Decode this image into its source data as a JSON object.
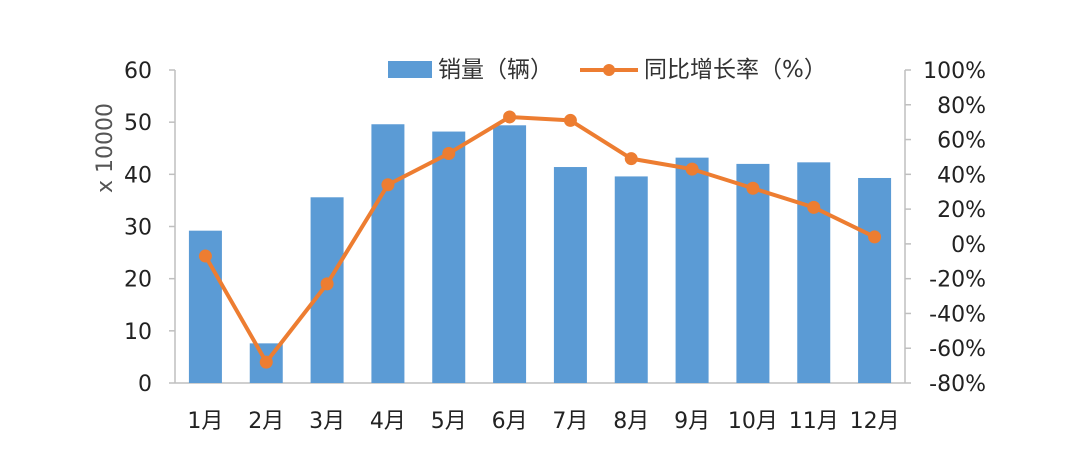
{
  "chart_data": {
    "type": "bar",
    "categories": [
      "1月",
      "2月",
      "3月",
      "4月",
      "5月",
      "6月",
      "7月",
      "8月",
      "9月",
      "10月",
      "11月",
      "12月"
    ],
    "series": [
      {
        "name": "销量（辆）",
        "type": "bar",
        "axis": "left",
        "color": "#5B9BD5",
        "values": [
          29.2,
          7.6,
          35.6,
          49.6,
          48.2,
          49.4,
          41.4,
          39.6,
          43.2,
          42.0,
          42.3,
          39.3
        ]
      },
      {
        "name": "同比增长率（%）",
        "type": "line",
        "axis": "right",
        "color": "#ED7D31",
        "values": [
          -7,
          -68,
          -23,
          34,
          52,
          73,
          71,
          49,
          43,
          32,
          21,
          4
        ]
      }
    ],
    "ylabel": "x 10000",
    "ylim": [
      0,
      60
    ],
    "yticks": [
      "0",
      "10",
      "20",
      "30",
      "40",
      "50",
      "60"
    ],
    "y2lim": [
      -80,
      100
    ],
    "y2ticks": [
      "-80%",
      "-60%",
      "-40%",
      "-20%",
      "0%",
      "20%",
      "40%",
      "60%",
      "80%",
      "100%"
    ],
    "legend_position": "top",
    "grid": false
  }
}
